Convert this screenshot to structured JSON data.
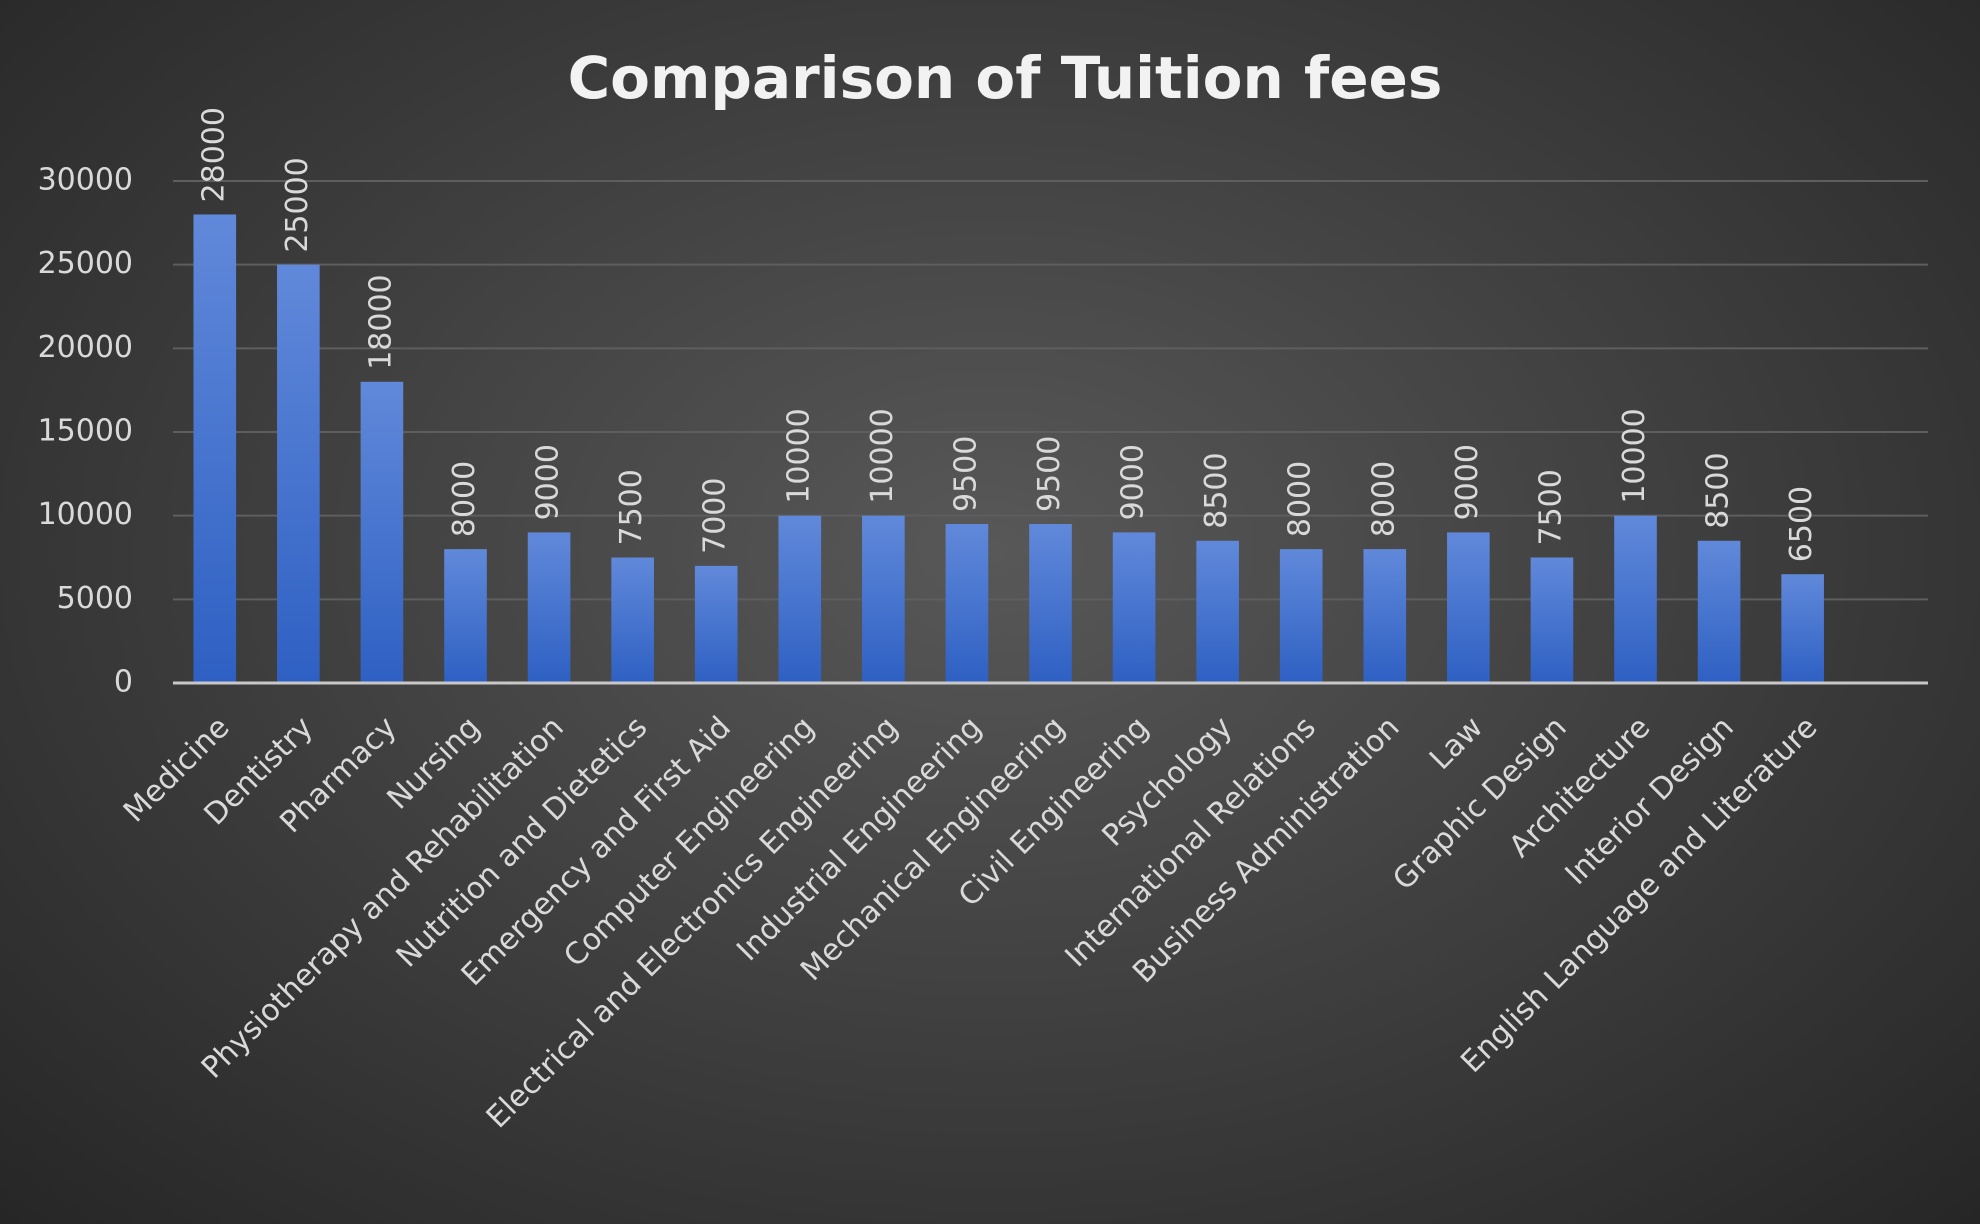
{
  "chart_data": {
    "type": "bar",
    "title": "Comparison of Tuition fees",
    "categories": [
      "Medicine",
      "Dentistry",
      "Pharmacy",
      "Nursing",
      "Physiotherapy and Rehabilitation",
      "Nutrition and Dietetics",
      "Emergency and First Aid",
      "Computer Engineering",
      "Electrical and Electronics Engineering",
      "Industrial Engineering",
      "Mechanical Engineering",
      "Civil Engineering",
      "Psychology",
      "International Relations",
      "Business Administration",
      "Law",
      "Graphic Design",
      "Architecture",
      "Interior Design",
      "English Language and Literature",
      null
    ],
    "values": [
      28000,
      25000,
      18000,
      8000,
      9000,
      7500,
      7000,
      10000,
      10000,
      9500,
      9500,
      9000,
      8500,
      8000,
      8000,
      9000,
      7500,
      10000,
      8500,
      6500,
      null
    ],
    "color": "#4a78d4",
    "ylim": [
      0,
      30000
    ],
    "yticks": [
      0,
      5000,
      10000,
      15000,
      20000,
      25000,
      30000
    ],
    "grid": true
  }
}
